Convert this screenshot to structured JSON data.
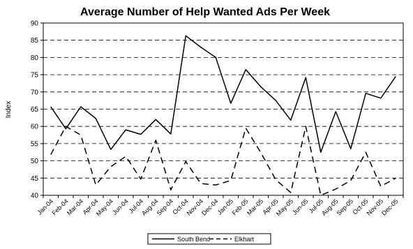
{
  "chart_data": {
    "type": "line",
    "title": "Average Number of Help Wanted Ads Per Week",
    "ylabel": "Index",
    "xlabel": "",
    "ylim": [
      40,
      90
    ],
    "yticks": [
      40,
      45,
      50,
      55,
      60,
      65,
      70,
      75,
      80,
      85,
      90
    ],
    "grid": "horizontal dashed",
    "legend_position": "bottom-center",
    "categories": [
      "Jan-04",
      "Feb-04",
      "Mar-04",
      "Apr-04",
      "May-04",
      "Jun-04",
      "Jul-04",
      "Aug-04",
      "Sep-04",
      "Oct-04",
      "Nov-04",
      "Dec-04",
      "Jan-05",
      "Feb-05",
      "Mar-05",
      "Apr-05",
      "May-05",
      "Jun-05",
      "Jul-05",
      "Aug-05",
      "Sep-05",
      "Oct-05",
      "Nov-05",
      "Dec-05"
    ],
    "series": [
      {
        "name": "South Bend",
        "style": "solid",
        "color": "#000000",
        "values": [
          65.7,
          59.3,
          65.7,
          62.3,
          53.3,
          59.0,
          57.7,
          62.0,
          57.8,
          86.3,
          83.0,
          80.0,
          66.7,
          76.5,
          71.5,
          67.5,
          61.8,
          74.2,
          52.5,
          64.3,
          53.5,
          69.6,
          68.2,
          74.5
        ]
      },
      {
        "name": "Elkhart",
        "style": "dashed",
        "color": "#000000",
        "values": [
          51.8,
          60.0,
          57.5,
          43.0,
          48.3,
          51.3,
          44.7,
          56.0,
          41.6,
          49.8,
          43.4,
          43.0,
          44.3,
          59.5,
          52.4,
          44.5,
          40.8,
          60.0,
          39.8,
          41.8,
          44.3,
          52.5,
          42.6,
          45.0
        ]
      }
    ]
  }
}
